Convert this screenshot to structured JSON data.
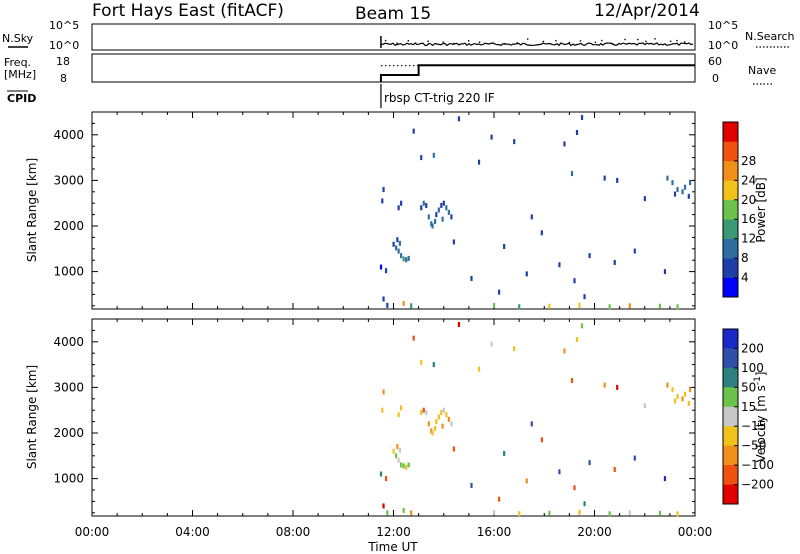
{
  "header": {
    "title": "Fort Hays East (fitACF)",
    "beam": "Beam 15",
    "date": "12/Apr/2014"
  },
  "noise_panel": {
    "left_label": "N.Sky",
    "right_label": "N.Search",
    "left_ticks": [
      "10^5",
      "10^0"
    ],
    "right_ticks": [
      "10^5",
      "10^0"
    ]
  },
  "freq_panel": {
    "left_label": "Freq.",
    "left_unit": "[MHz]",
    "right_label": "Nave",
    "left_ticks": [
      "18",
      "8"
    ],
    "right_ticks": [
      "60",
      "0"
    ],
    "freq_steps": [
      {
        "t": 11.5,
        "v": 10.5
      },
      {
        "t": 13.0,
        "v": 14.0
      },
      {
        "t": 24.0,
        "v": 14.0
      }
    ],
    "nave_value": 35
  },
  "cpid": {
    "label": "CPID",
    "mode_text": "rbsp CT-trig 220 IF",
    "start_hour": 11.5
  },
  "x_axis": {
    "label": "Time UT",
    "ticks": [
      "00:00",
      "04:00",
      "08:00",
      "12:00",
      "16:00",
      "20:00",
      "00:00"
    ],
    "range_hours": [
      0,
      24
    ]
  },
  "chart_data": [
    {
      "type": "scatter",
      "title": "",
      "xlabel": "Time UT",
      "ylabel": "Slant Range [km]",
      "xlim": [
        0,
        24
      ],
      "ylim": [
        180,
        4500
      ],
      "yticks": [
        "1000",
        "2000",
        "3000",
        "4000"
      ],
      "colorbar": {
        "label": "Power [dB]",
        "ticks": [
          "4",
          "8",
          "12",
          "16",
          "20",
          "24",
          "28"
        ],
        "range": [
          0,
          32
        ],
        "colors": [
          "#0000ff",
          "#1e3fa8",
          "#2f6fa0",
          "#3a9a78",
          "#6cc24a",
          "#f0c21c",
          "#f09018",
          "#f05010",
          "#e00000"
        ]
      },
      "points": [
        {
          "t": 11.6,
          "r": 2800,
          "v": 6
        },
        {
          "t": 11.55,
          "r": 2550,
          "v": 5
        },
        {
          "t": 11.5,
          "r": 1100,
          "v": 3
        },
        {
          "t": 11.7,
          "r": 1020,
          "v": 4
        },
        {
          "t": 11.6,
          "r": 400,
          "v": 6
        },
        {
          "t": 11.75,
          "r": 260,
          "v": 5
        },
        {
          "t": 12.0,
          "r": 1600,
          "v": 7
        },
        {
          "t": 12.1,
          "r": 1520,
          "v": 8
        },
        {
          "t": 12.2,
          "r": 1450,
          "v": 9
        },
        {
          "t": 12.3,
          "r": 1350,
          "v": 10
        },
        {
          "t": 12.4,
          "r": 1280,
          "v": 12
        },
        {
          "t": 12.5,
          "r": 1260,
          "v": 11
        },
        {
          "t": 12.6,
          "r": 1290,
          "v": 9
        },
        {
          "t": 12.15,
          "r": 1700,
          "v": 6
        },
        {
          "t": 12.25,
          "r": 1620,
          "v": 8
        },
        {
          "t": 12.2,
          "r": 2400,
          "v": 5
        },
        {
          "t": 12.3,
          "r": 2500,
          "v": 6
        },
        {
          "t": 13.1,
          "r": 2400,
          "v": 7
        },
        {
          "t": 13.2,
          "r": 2500,
          "v": 8
        },
        {
          "t": 13.3,
          "r": 2450,
          "v": 6
        },
        {
          "t": 13.4,
          "r": 2200,
          "v": 9
        },
        {
          "t": 13.5,
          "r": 2050,
          "v": 10
        },
        {
          "t": 13.55,
          "r": 2000,
          "v": 11
        },
        {
          "t": 13.65,
          "r": 2100,
          "v": 9
        },
        {
          "t": 13.7,
          "r": 2250,
          "v": 7
        },
        {
          "t": 13.8,
          "r": 2350,
          "v": 8
        },
        {
          "t": 13.9,
          "r": 2450,
          "v": 7
        },
        {
          "t": 14.0,
          "r": 2500,
          "v": 6
        },
        {
          "t": 14.1,
          "r": 2400,
          "v": 9
        },
        {
          "t": 14.2,
          "r": 2300,
          "v": 8
        },
        {
          "t": 14.3,
          "r": 2200,
          "v": 6
        },
        {
          "t": 13.95,
          "r": 2150,
          "v": 10
        },
        {
          "t": 12.8,
          "r": 4080,
          "v": 6
        },
        {
          "t": 13.1,
          "r": 3500,
          "v": 7
        },
        {
          "t": 13.6,
          "r": 3550,
          "v": 8
        },
        {
          "t": 14.6,
          "r": 4350,
          "v": 5
        },
        {
          "t": 15.4,
          "r": 3400,
          "v": 6
        },
        {
          "t": 15.9,
          "r": 3950,
          "v": 7
        },
        {
          "t": 16.8,
          "r": 3850,
          "v": 5
        },
        {
          "t": 17.5,
          "r": 2200,
          "v": 6
        },
        {
          "t": 17.9,
          "r": 1850,
          "v": 4
        },
        {
          "t": 18.8,
          "r": 3800,
          "v": 7
        },
        {
          "t": 19.3,
          "r": 4050,
          "v": 6
        },
        {
          "t": 19.5,
          "r": 4380,
          "v": 5
        },
        {
          "t": 19.1,
          "r": 3150,
          "v": 8
        },
        {
          "t": 20.4,
          "r": 3050,
          "v": 6
        },
        {
          "t": 20.9,
          "r": 3000,
          "v": 7
        },
        {
          "t": 22.0,
          "r": 2600,
          "v": 5
        },
        {
          "t": 21.6,
          "r": 1450,
          "v": 4
        },
        {
          "t": 20.8,
          "r": 1200,
          "v": 5
        },
        {
          "t": 19.8,
          "r": 1350,
          "v": 6
        },
        {
          "t": 19.2,
          "r": 800,
          "v": 7
        },
        {
          "t": 19.6,
          "r": 450,
          "v": 5
        },
        {
          "t": 18.6,
          "r": 1150,
          "v": 6
        },
        {
          "t": 17.3,
          "r": 950,
          "v": 4
        },
        {
          "t": 16.2,
          "r": 550,
          "v": 6
        },
        {
          "t": 15.1,
          "r": 850,
          "v": 5
        },
        {
          "t": 14.4,
          "r": 1650,
          "v": 7
        },
        {
          "t": 16.4,
          "r": 1550,
          "v": 6
        },
        {
          "t": 22.8,
          "r": 1000,
          "v": 5
        },
        {
          "t": 22.9,
          "r": 3050,
          "v": 9
        },
        {
          "t": 23.1,
          "r": 2950,
          "v": 10
        },
        {
          "t": 23.3,
          "r": 2800,
          "v": 8
        },
        {
          "t": 23.5,
          "r": 2750,
          "v": 9
        },
        {
          "t": 23.6,
          "r": 2850,
          "v": 11
        },
        {
          "t": 23.2,
          "r": 2700,
          "v": 7
        },
        {
          "t": 23.75,
          "r": 2650,
          "v": 6
        },
        {
          "t": 23.8,
          "r": 2950,
          "v": 8
        },
        {
          "t": 12.7,
          "r": 250,
          "v": 15
        },
        {
          "t": 16.0,
          "r": 260,
          "v": 18
        },
        {
          "t": 17.0,
          "r": 230,
          "v": 14
        },
        {
          "t": 18.2,
          "r": 240,
          "v": 20
        },
        {
          "t": 19.4,
          "r": 260,
          "v": 22
        },
        {
          "t": 20.6,
          "r": 230,
          "v": 16
        },
        {
          "t": 21.4,
          "r": 250,
          "v": 24
        },
        {
          "t": 22.6,
          "r": 240,
          "v": 19
        },
        {
          "t": 23.3,
          "r": 230,
          "v": 17
        },
        {
          "t": 12.4,
          "r": 300,
          "v": 26
        }
      ]
    },
    {
      "type": "scatter",
      "title": "",
      "xlabel": "Time UT",
      "ylabel": "Slant Range [km]",
      "xlim": [
        0,
        24
      ],
      "ylim": [
        180,
        4500
      ],
      "yticks": [
        "1000",
        "2000",
        "3000",
        "4000"
      ],
      "colorbar": {
        "label": "Velocity [m s^-1]",
        "ticks": [
          "200",
          "100",
          "50",
          "15",
          "-15",
          "-50",
          "-100",
          "-200"
        ],
        "range": [
          -300,
          300
        ],
        "colors": [
          "#1a28c8",
          "#2f4fa8",
          "#2f8080",
          "#6cc24a",
          "#c8c8c8",
          "#f0c21c",
          "#f09018",
          "#f05010",
          "#e00000"
        ]
      },
      "points": [
        {
          "t": 11.6,
          "r": 2900,
          "v": -60
        },
        {
          "t": 11.55,
          "r": 2500,
          "v": -30
        },
        {
          "t": 11.5,
          "r": 1100,
          "v": 80
        },
        {
          "t": 11.7,
          "r": 1000,
          "v": -150
        },
        {
          "t": 11.6,
          "r": 400,
          "v": -220
        },
        {
          "t": 11.75,
          "r": 250,
          "v": 30
        },
        {
          "t": 12.0,
          "r": 1600,
          "v": -40
        },
        {
          "t": 12.1,
          "r": 1500,
          "v": 25
        },
        {
          "t": 12.2,
          "r": 1400,
          "v": -10
        },
        {
          "t": 12.3,
          "r": 1300,
          "v": 30
        },
        {
          "t": 12.4,
          "r": 1280,
          "v": 20
        },
        {
          "t": 12.5,
          "r": 1250,
          "v": -25
        },
        {
          "t": 12.6,
          "r": 1300,
          "v": 40
        },
        {
          "t": 12.15,
          "r": 1700,
          "v": -70
        },
        {
          "t": 12.25,
          "r": 1620,
          "v": 10
        },
        {
          "t": 12.2,
          "r": 2400,
          "v": -45
        },
        {
          "t": 12.3,
          "r": 2550,
          "v": -20
        },
        {
          "t": 13.1,
          "r": 2450,
          "v": -30
        },
        {
          "t": 13.2,
          "r": 2500,
          "v": -200
        },
        {
          "t": 13.3,
          "r": 2450,
          "v": 5
        },
        {
          "t": 13.4,
          "r": 2200,
          "v": -60
        },
        {
          "t": 13.5,
          "r": 2050,
          "v": -55
        },
        {
          "t": 13.55,
          "r": 2000,
          "v": -40
        },
        {
          "t": 13.65,
          "r": 2100,
          "v": -50
        },
        {
          "t": 13.7,
          "r": 2250,
          "v": -45
        },
        {
          "t": 13.8,
          "r": 2350,
          "v": -35
        },
        {
          "t": 13.9,
          "r": 2450,
          "v": -20
        },
        {
          "t": 14.0,
          "r": 2500,
          "v": 8
        },
        {
          "t": 14.1,
          "r": 2400,
          "v": -30
        },
        {
          "t": 14.2,
          "r": 2300,
          "v": -60
        },
        {
          "t": 14.3,
          "r": 2200,
          "v": -15
        },
        {
          "t": 13.95,
          "r": 2150,
          "v": -65
        },
        {
          "t": 12.8,
          "r": 4080,
          "v": -130
        },
        {
          "t": 13.1,
          "r": 3550,
          "v": -40
        },
        {
          "t": 13.6,
          "r": 3500,
          "v": 80
        },
        {
          "t": 14.6,
          "r": 4380,
          "v": -250
        },
        {
          "t": 15.4,
          "r": 3400,
          "v": -30
        },
        {
          "t": 15.9,
          "r": 3950,
          "v": 10
        },
        {
          "t": 16.8,
          "r": 3850,
          "v": -20
        },
        {
          "t": 17.5,
          "r": 2200,
          "v": 150
        },
        {
          "t": 17.9,
          "r": 1850,
          "v": -110
        },
        {
          "t": 18.8,
          "r": 3800,
          "v": -60
        },
        {
          "t": 19.3,
          "r": 4050,
          "v": -40
        },
        {
          "t": 19.5,
          "r": 4350,
          "v": 20
        },
        {
          "t": 19.1,
          "r": 3150,
          "v": -150
        },
        {
          "t": 20.4,
          "r": 3050,
          "v": -80
        },
        {
          "t": 20.9,
          "r": 3000,
          "v": -220
        },
        {
          "t": 22.0,
          "r": 2600,
          "v": 5
        },
        {
          "t": 21.6,
          "r": 1450,
          "v": 180
        },
        {
          "t": 20.8,
          "r": 1200,
          "v": -140
        },
        {
          "t": 19.8,
          "r": 1350,
          "v": 120
        },
        {
          "t": 19.2,
          "r": 800,
          "v": -200
        },
        {
          "t": 19.6,
          "r": 450,
          "v": 90
        },
        {
          "t": 18.6,
          "r": 1150,
          "v": 160
        },
        {
          "t": 17.3,
          "r": 950,
          "v": -90
        },
        {
          "t": 16.2,
          "r": 550,
          "v": -180
        },
        {
          "t": 15.1,
          "r": 850,
          "v": 140
        },
        {
          "t": 14.4,
          "r": 1650,
          "v": -120
        },
        {
          "t": 16.4,
          "r": 1550,
          "v": 60
        },
        {
          "t": 22.8,
          "r": 1000,
          "v": 200
        },
        {
          "t": 22.9,
          "r": 3050,
          "v": -70
        },
        {
          "t": 23.1,
          "r": 2950,
          "v": -50
        },
        {
          "t": 23.3,
          "r": 2800,
          "v": -40
        },
        {
          "t": 23.5,
          "r": 2750,
          "v": -60
        },
        {
          "t": 23.6,
          "r": 2850,
          "v": -30
        },
        {
          "t": 23.2,
          "r": 2700,
          "v": -45
        },
        {
          "t": 23.75,
          "r": 2650,
          "v": -20
        },
        {
          "t": 23.8,
          "r": 2950,
          "v": -55
        },
        {
          "t": 12.7,
          "r": 250,
          "v": -60
        },
        {
          "t": 16.0,
          "r": 260,
          "v": 10
        },
        {
          "t": 17.0,
          "r": 230,
          "v": -40
        },
        {
          "t": 18.2,
          "r": 240,
          "v": 20
        },
        {
          "t": 19.4,
          "r": 260,
          "v": -30
        },
        {
          "t": 20.6,
          "r": 230,
          "v": 15
        },
        {
          "t": 21.4,
          "r": 250,
          "v": -10
        },
        {
          "t": 22.6,
          "r": 240,
          "v": 25
        },
        {
          "t": 23.3,
          "r": 230,
          "v": -50
        },
        {
          "t": 12.4,
          "r": 300,
          "v": 40
        }
      ]
    }
  ]
}
